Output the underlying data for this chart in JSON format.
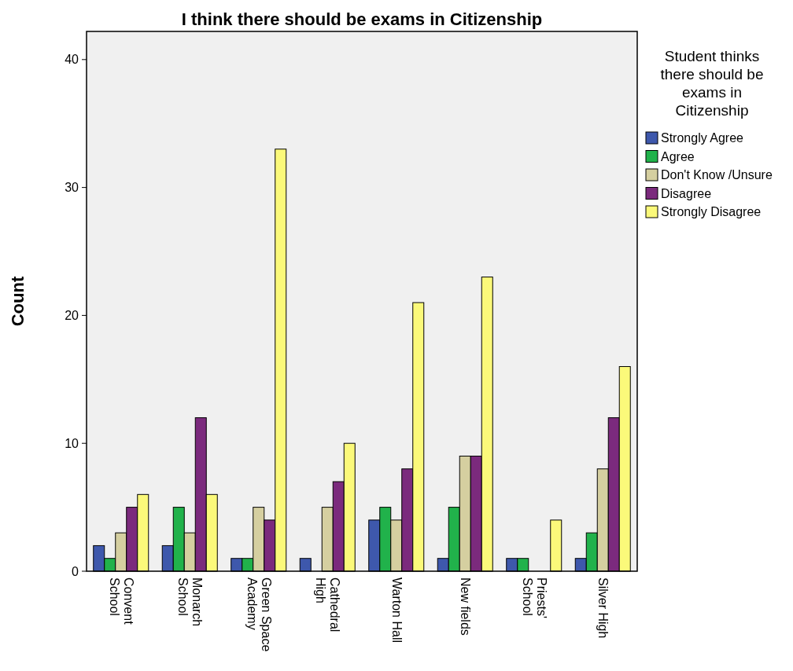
{
  "chart_data": {
    "type": "bar",
    "title": "I think there should be exams in Citizenship",
    "ylabel": "Count",
    "legend_title": "Student thinks there should be exams in Citizenship",
    "legend": "right",
    "grid": false,
    "categories": [
      "Convent School",
      "Monarch School",
      "Green Space Academy",
      "Cathedral High",
      "Warton Hall",
      "New fields",
      "Priests' School",
      "Silver High"
    ],
    "ylim": [
      0,
      42.2
    ],
    "yticks": [
      0,
      10,
      20,
      30,
      40
    ],
    "series": [
      {
        "name": "Strongly Agree",
        "color": "#3e58ac",
        "values": [
          2,
          2,
          1,
          1,
          4,
          1,
          1,
          1
        ]
      },
      {
        "name": "Agree",
        "color": "#21b24b",
        "values": [
          1,
          5,
          1,
          null,
          5,
          5,
          1,
          3
        ]
      },
      {
        "name": "Don't Know /Unsure",
        "color": "#d5cfa0",
        "values": [
          3,
          3,
          5,
          5,
          4,
          9,
          null,
          8
        ]
      },
      {
        "name": "Disagree",
        "color": "#7b2a7d",
        "values": [
          5,
          12,
          4,
          7,
          8,
          9,
          null,
          12
        ]
      },
      {
        "name": "Strongly Disagree",
        "color": "#fbf97a",
        "values": [
          6,
          6,
          33,
          10,
          21,
          23,
          4,
          16
        ]
      }
    ]
  }
}
